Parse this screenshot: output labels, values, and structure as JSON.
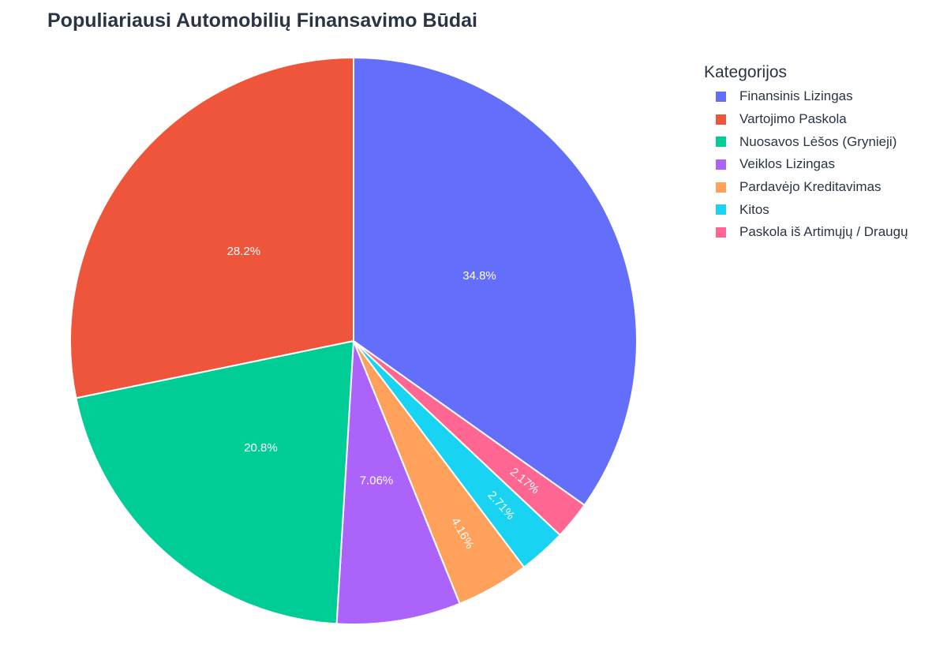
{
  "chart_data": {
    "type": "pie",
    "title": "Populiariausi Automobilių Finansavimo Būdai",
    "legend_title": "Kategorijos",
    "legend_position": "top-right",
    "direction": "clockwise",
    "start": "top",
    "slices": [
      {
        "label": "Finansinis Lizingas",
        "value": 34.8,
        "display": "34.8%",
        "color": "#636EFA"
      },
      {
        "label": "Paskola iš Artimųjų / Draugų",
        "value": 2.17,
        "display": "2.17%",
        "color": "#FF6692"
      },
      {
        "label": "Kitos",
        "value": 2.71,
        "display": "2.71%",
        "color": "#19D3F3"
      },
      {
        "label": "Pardavėjo Kreditavimas",
        "value": 4.16,
        "display": "4.16%",
        "color": "#FFA15A"
      },
      {
        "label": "Veiklos Lizingas",
        "value": 7.06,
        "display": "7.06%",
        "color": "#AB63FA"
      },
      {
        "label": "Nuosavos Lėšos (Grynieji)",
        "value": 20.8,
        "display": "20.8%",
        "color": "#00CC96"
      },
      {
        "label": "Vartojimo Paskola",
        "value": 28.2,
        "display": "28.2%",
        "color": "#EF553B"
      }
    ],
    "legend_order": [
      "Finansinis Lizingas",
      "Vartojimo Paskola",
      "Nuosavos Lėšos (Grynieji)",
      "Veiklos Lizingas",
      "Pardavėjo Kreditavimas",
      "Kitos",
      "Paskola iš Artimųjų / Draugų"
    ]
  }
}
